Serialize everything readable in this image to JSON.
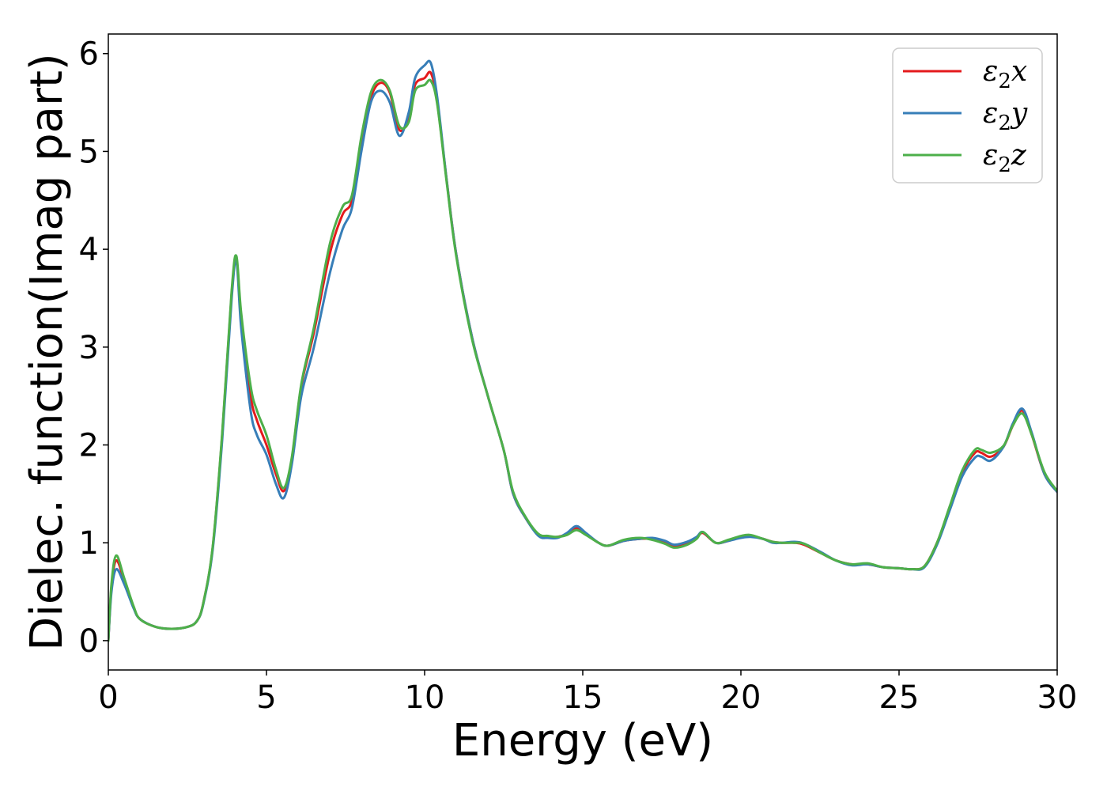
{
  "chart_data": {
    "type": "line",
    "title": "",
    "xlabel": "Energy (eV)",
    "ylabel": "Dielec. function(Imag part)",
    "xlim": [
      0,
      30
    ],
    "ylim": [
      -0.3,
      6.2
    ],
    "xticks": [
      0,
      5,
      10,
      15,
      20,
      25,
      30
    ],
    "yticks": [
      0,
      1,
      2,
      3,
      4,
      5,
      6
    ],
    "xtick_labels": [
      "0",
      "5",
      "10",
      "15",
      "20",
      "25",
      "30"
    ],
    "ytick_labels": [
      "0",
      "1",
      "2",
      "3",
      "4",
      "5",
      "6"
    ],
    "grid": false,
    "legend_position": "top-right",
    "series": [
      {
        "name": "ε2x",
        "legend_base": "ε",
        "legend_sub": "2",
        "legend_tail": "x",
        "color": "#e41a1c",
        "x": [
          0,
          0.1,
          0.25,
          0.5,
          0.8,
          1.0,
          1.5,
          2.0,
          2.5,
          2.8,
          3.0,
          3.3,
          3.6,
          3.9,
          4.05,
          4.2,
          4.5,
          4.7,
          5.0,
          5.3,
          5.55,
          5.8,
          6.1,
          6.5,
          7.0,
          7.4,
          7.7,
          8.0,
          8.3,
          8.6,
          8.9,
          9.2,
          9.5,
          9.7,
          10.0,
          10.2,
          10.4,
          10.7,
          11.0,
          11.5,
          12.0,
          12.5,
          12.8,
          13.2,
          13.6,
          13.9,
          14.2,
          14.5,
          14.8,
          15.1,
          15.5,
          15.8,
          16.3,
          16.8,
          17.2,
          17.6,
          17.9,
          18.3,
          18.6,
          18.8,
          19.2,
          19.6,
          20.0,
          20.3,
          20.7,
          21.0,
          21.3,
          21.7,
          22.0,
          22.5,
          23.0,
          23.5,
          24.0,
          24.5,
          25.0,
          25.4,
          25.8,
          26.2,
          26.6,
          27.0,
          27.4,
          27.6,
          27.9,
          28.3,
          28.6,
          28.9,
          29.2,
          29.6,
          30.0
        ],
        "y": [
          0.0,
          0.55,
          0.82,
          0.62,
          0.34,
          0.22,
          0.14,
          0.12,
          0.14,
          0.2,
          0.38,
          0.95,
          2.1,
          3.55,
          3.9,
          3.3,
          2.5,
          2.25,
          2.0,
          1.7,
          1.53,
          1.85,
          2.6,
          3.15,
          3.95,
          4.35,
          4.5,
          5.1,
          5.55,
          5.7,
          5.6,
          5.22,
          5.35,
          5.68,
          5.75,
          5.8,
          5.5,
          4.7,
          3.95,
          3.1,
          2.5,
          1.95,
          1.5,
          1.25,
          1.08,
          1.06,
          1.06,
          1.09,
          1.15,
          1.09,
          1.0,
          0.97,
          1.02,
          1.04,
          1.04,
          1.0,
          0.96,
          0.99,
          1.05,
          1.1,
          1.0,
          1.02,
          1.06,
          1.07,
          1.04,
          1.01,
          1.0,
          1.0,
          0.98,
          0.9,
          0.82,
          0.78,
          0.78,
          0.75,
          0.74,
          0.73,
          0.76,
          1.0,
          1.35,
          1.72,
          1.92,
          1.92,
          1.88,
          1.98,
          2.2,
          2.35,
          2.1,
          1.7,
          1.52
        ]
      },
      {
        "name": "ε2y",
        "legend_base": "ε",
        "legend_sub": "2",
        "legend_tail": "y",
        "color": "#377eb8",
        "x": [
          0,
          0.1,
          0.25,
          0.5,
          0.8,
          1.0,
          1.5,
          2.0,
          2.5,
          2.8,
          3.0,
          3.3,
          3.6,
          3.9,
          4.05,
          4.2,
          4.5,
          4.7,
          5.0,
          5.3,
          5.55,
          5.8,
          6.1,
          6.5,
          7.0,
          7.4,
          7.7,
          8.0,
          8.3,
          8.6,
          8.9,
          9.2,
          9.5,
          9.7,
          10.0,
          10.2,
          10.4,
          10.7,
          11.0,
          11.5,
          12.0,
          12.5,
          12.8,
          13.2,
          13.6,
          13.9,
          14.2,
          14.5,
          14.8,
          15.1,
          15.5,
          15.8,
          16.3,
          16.8,
          17.2,
          17.6,
          17.9,
          18.3,
          18.6,
          18.8,
          19.2,
          19.6,
          20.0,
          20.3,
          20.7,
          21.0,
          21.3,
          21.7,
          22.0,
          22.5,
          23.0,
          23.5,
          24.0,
          24.5,
          25.0,
          25.4,
          25.8,
          26.2,
          26.6,
          27.0,
          27.4,
          27.6,
          27.9,
          28.3,
          28.6,
          28.9,
          29.2,
          29.6,
          30.0
        ],
        "y": [
          0.0,
          0.5,
          0.73,
          0.58,
          0.33,
          0.22,
          0.14,
          0.12,
          0.14,
          0.2,
          0.37,
          0.93,
          2.05,
          3.5,
          3.88,
          3.2,
          2.35,
          2.1,
          1.9,
          1.6,
          1.46,
          1.8,
          2.5,
          3.0,
          3.75,
          4.2,
          4.42,
          5.0,
          5.5,
          5.62,
          5.5,
          5.16,
          5.4,
          5.75,
          5.88,
          5.9,
          5.55,
          4.7,
          3.95,
          3.1,
          2.5,
          1.95,
          1.5,
          1.25,
          1.07,
          1.05,
          1.05,
          1.1,
          1.17,
          1.1,
          1.0,
          0.97,
          1.02,
          1.04,
          1.05,
          1.02,
          0.98,
          1.01,
          1.06,
          1.11,
          1.0,
          1.02,
          1.05,
          1.06,
          1.04,
          1.0,
          1.0,
          1.01,
          0.99,
          0.91,
          0.82,
          0.77,
          0.78,
          0.75,
          0.74,
          0.73,
          0.75,
          0.98,
          1.33,
          1.68,
          1.87,
          1.88,
          1.84,
          1.98,
          2.22,
          2.37,
          2.12,
          1.7,
          1.52
        ]
      },
      {
        "name": "ε2z",
        "legend_base": "ε",
        "legend_sub": "2",
        "legend_tail": "z",
        "color": "#4daf4a",
        "x": [
          0,
          0.1,
          0.25,
          0.5,
          0.8,
          1.0,
          1.5,
          2.0,
          2.5,
          2.8,
          3.0,
          3.3,
          3.6,
          3.9,
          4.05,
          4.2,
          4.5,
          4.7,
          5.0,
          5.3,
          5.55,
          5.8,
          6.1,
          6.5,
          7.0,
          7.4,
          7.7,
          8.0,
          8.3,
          8.6,
          8.9,
          9.2,
          9.5,
          9.7,
          10.0,
          10.2,
          10.4,
          10.7,
          11.0,
          11.5,
          12.0,
          12.5,
          12.8,
          13.2,
          13.6,
          13.9,
          14.2,
          14.5,
          14.8,
          15.1,
          15.5,
          15.8,
          16.3,
          16.8,
          17.2,
          17.6,
          17.9,
          18.3,
          18.6,
          18.8,
          19.2,
          19.6,
          20.0,
          20.3,
          20.7,
          21.0,
          21.3,
          21.7,
          22.0,
          22.5,
          23.0,
          23.5,
          24.0,
          24.5,
          25.0,
          25.4,
          25.8,
          26.2,
          26.6,
          27.0,
          27.4,
          27.6,
          27.9,
          28.3,
          28.6,
          28.9,
          29.2,
          29.6,
          30.0
        ],
        "y": [
          0.0,
          0.58,
          0.87,
          0.64,
          0.35,
          0.22,
          0.14,
          0.12,
          0.14,
          0.2,
          0.38,
          0.96,
          2.12,
          3.58,
          3.93,
          3.35,
          2.6,
          2.35,
          2.1,
          1.75,
          1.56,
          1.87,
          2.62,
          3.2,
          4.05,
          4.43,
          4.55,
          5.15,
          5.6,
          5.73,
          5.62,
          5.26,
          5.3,
          5.62,
          5.68,
          5.72,
          5.48,
          4.68,
          3.93,
          3.08,
          2.5,
          1.95,
          1.52,
          1.26,
          1.09,
          1.07,
          1.06,
          1.08,
          1.13,
          1.08,
          1.0,
          0.97,
          1.03,
          1.05,
          1.03,
          0.99,
          0.95,
          0.98,
          1.04,
          1.11,
          1.0,
          1.03,
          1.07,
          1.08,
          1.04,
          1.01,
          1.0,
          1.0,
          0.99,
          0.9,
          0.82,
          0.78,
          0.79,
          0.75,
          0.74,
          0.73,
          0.76,
          1.0,
          1.37,
          1.74,
          1.95,
          1.95,
          1.92,
          1.99,
          2.2,
          2.32,
          2.1,
          1.72,
          1.53
        ]
      }
    ]
  }
}
